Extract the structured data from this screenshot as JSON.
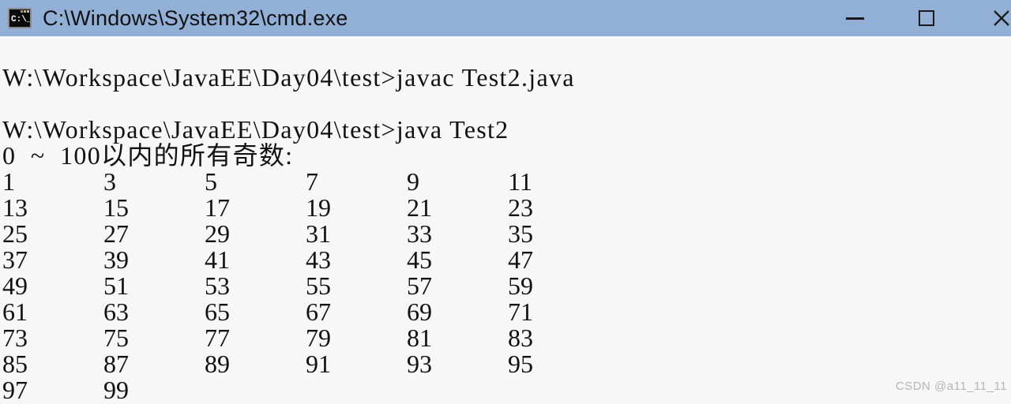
{
  "window": {
    "title": "C:\\Windows\\System32\\cmd.exe",
    "icon": {
      "name": "cmd-icon",
      "text": "C:\\_"
    },
    "controls": {
      "minimize_icon": "minimize-icon",
      "maximize_icon": "maximize-icon",
      "close_icon": "close-icon"
    }
  },
  "colors": {
    "titlebar": "#92afd6",
    "background": "#f7f7f7",
    "text": "#111111",
    "watermark": "#b5b5b5"
  },
  "terminal": {
    "line_javac": "W:\\Workspace\\JavaEE\\Day04\\test>javac Test2.java",
    "line_java": "W:\\Workspace\\JavaEE\\Day04\\test>java Test2",
    "header": "0  ~  100以内的所有奇数:",
    "number_rows": [
      [
        1,
        3,
        5,
        7,
        9,
        11
      ],
      [
        13,
        15,
        17,
        19,
        21,
        23
      ],
      [
        25,
        27,
        29,
        31,
        33,
        35
      ],
      [
        37,
        39,
        41,
        43,
        45,
        47
      ],
      [
        49,
        51,
        53,
        55,
        57,
        59
      ],
      [
        61,
        63,
        65,
        67,
        69,
        71
      ],
      [
        73,
        75,
        77,
        79,
        81,
        83
      ],
      [
        85,
        87,
        89,
        91,
        93,
        95
      ],
      [
        97,
        99
      ]
    ]
  },
  "watermark": "CSDN @a11_11_11"
}
